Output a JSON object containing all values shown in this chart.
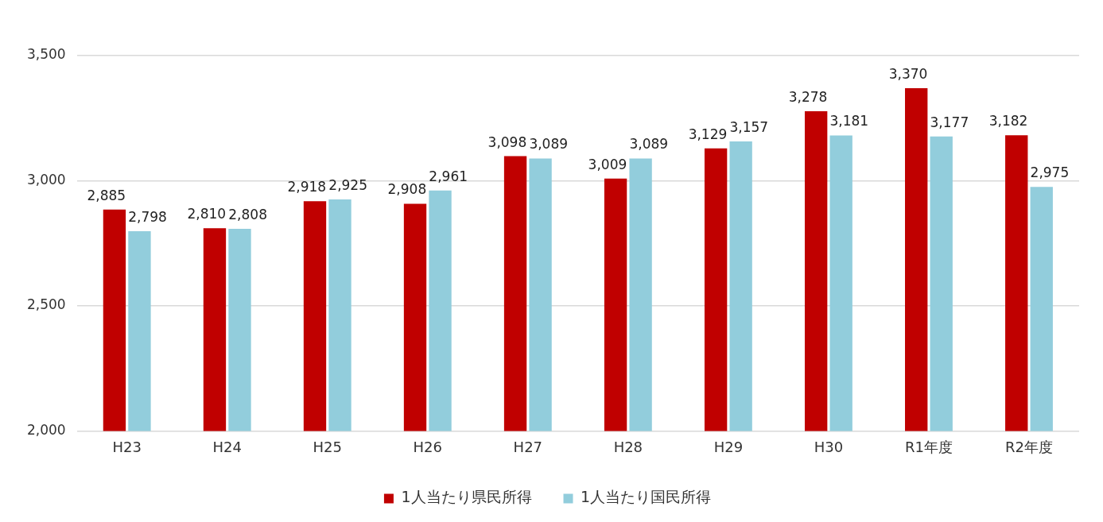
{
  "chart_data": {
    "type": "bar",
    "categories": [
      "H23",
      "H24",
      "H25",
      "H26",
      "H27",
      "H28",
      "H29",
      "H30",
      "R1年度",
      "R2年度"
    ],
    "series": [
      {
        "name": "1人当たり県民所得",
        "color": "#c00000",
        "values": [
          2885,
          2810,
          2918,
          2908,
          3098,
          3009,
          3129,
          3278,
          3370,
          3182
        ],
        "value_labels": [
          "2,885",
          "2,810",
          "2,918",
          "2,908",
          "3,098",
          "3,009",
          "3,129",
          "3,278",
          "3,370",
          "3,182"
        ]
      },
      {
        "name": "1人当たり国民所得",
        "color": "#92cddc",
        "values": [
          2798,
          2808,
          2925,
          2961,
          3089,
          3089,
          3157,
          3181,
          3177,
          2975
        ],
        "value_labels": [
          "2,798",
          "2,808",
          "2,925",
          "2,961",
          "3,089",
          "3,089",
          "3,157",
          "3,181",
          "3,177",
          "2,975"
        ]
      }
    ],
    "ylim": [
      2000,
      3500
    ],
    "yticks": [
      {
        "value": 2000,
        "label": "2,000"
      },
      {
        "value": 2500,
        "label": "2,500"
      },
      {
        "value": 3000,
        "label": "3,000"
      },
      {
        "value": 3500,
        "label": "3,500"
      }
    ],
    "grid": "y",
    "legend": "bottom"
  }
}
